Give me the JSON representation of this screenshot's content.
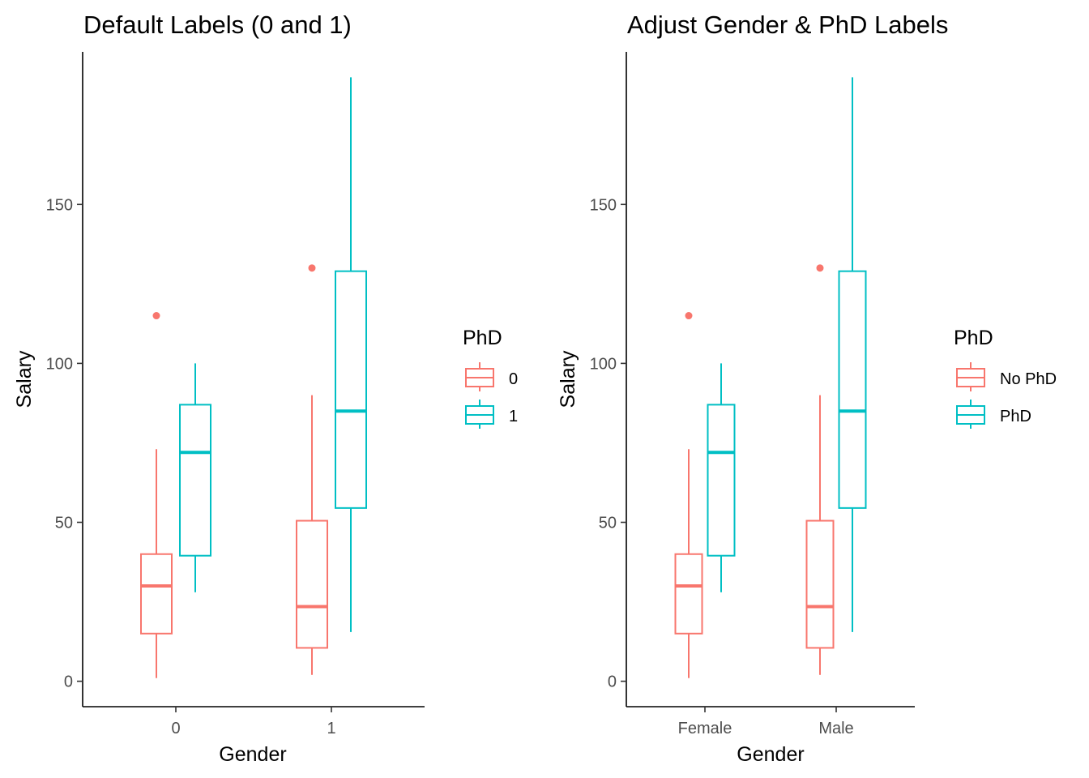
{
  "colors": {
    "no_phd": "#F8766D",
    "phd": "#00BFC4"
  },
  "chart_data": [
    {
      "type": "boxplot",
      "title": "Default Labels (0 and 1)",
      "xlabel": "Gender",
      "ylabel": "Salary",
      "categories": [
        "0",
        "1"
      ],
      "ylim": [
        -8,
        198
      ],
      "yticks": [
        0,
        50,
        100,
        150
      ],
      "grid": false,
      "legend": {
        "title": "PhD",
        "position": "right",
        "entries": [
          "0",
          "1"
        ]
      },
      "series": [
        {
          "name": "0",
          "color": "#F8766D",
          "boxes": [
            {
              "category": "0",
              "min": 1,
              "q1": 15,
              "median": 30,
              "q3": 40,
              "max": 73,
              "outliers": [
                115
              ]
            },
            {
              "category": "1",
              "min": 2,
              "q1": 10.5,
              "median": 23.5,
              "q3": 50.5,
              "max": 90,
              "outliers": [
                130
              ]
            }
          ]
        },
        {
          "name": "1",
          "color": "#00BFC4",
          "boxes": [
            {
              "category": "0",
              "min": 28,
              "q1": 39.5,
              "median": 72,
              "q3": 87,
              "max": 100,
              "outliers": []
            },
            {
              "category": "1",
              "min": 15.5,
              "q1": 54.5,
              "median": 85,
              "q3": 129,
              "max": 190,
              "outliers": []
            }
          ]
        }
      ]
    },
    {
      "type": "boxplot",
      "title": "Adjust Gender & PhD Labels",
      "xlabel": "Gender",
      "ylabel": "Salary",
      "categories": [
        "Female",
        "Male"
      ],
      "ylim": [
        -8,
        198
      ],
      "yticks": [
        0,
        50,
        100,
        150
      ],
      "grid": false,
      "legend": {
        "title": "PhD",
        "position": "right",
        "entries": [
          "No PhD",
          "PhD"
        ]
      },
      "series": [
        {
          "name": "No PhD",
          "color": "#F8766D",
          "boxes": [
            {
              "category": "Female",
              "min": 1,
              "q1": 15,
              "median": 30,
              "q3": 40,
              "max": 73,
              "outliers": [
                115
              ]
            },
            {
              "category": "Male",
              "min": 2,
              "q1": 10.5,
              "median": 23.5,
              "q3": 50.5,
              "max": 90,
              "outliers": [
                130
              ]
            }
          ]
        },
        {
          "name": "PhD",
          "color": "#00BFC4",
          "boxes": [
            {
              "category": "Female",
              "min": 28,
              "q1": 39.5,
              "median": 72,
              "q3": 87,
              "max": 100,
              "outliers": []
            },
            {
              "category": "Male",
              "min": 15.5,
              "q1": 54.5,
              "median": 85,
              "q3": 129,
              "max": 190,
              "outliers": []
            }
          ]
        }
      ]
    }
  ]
}
